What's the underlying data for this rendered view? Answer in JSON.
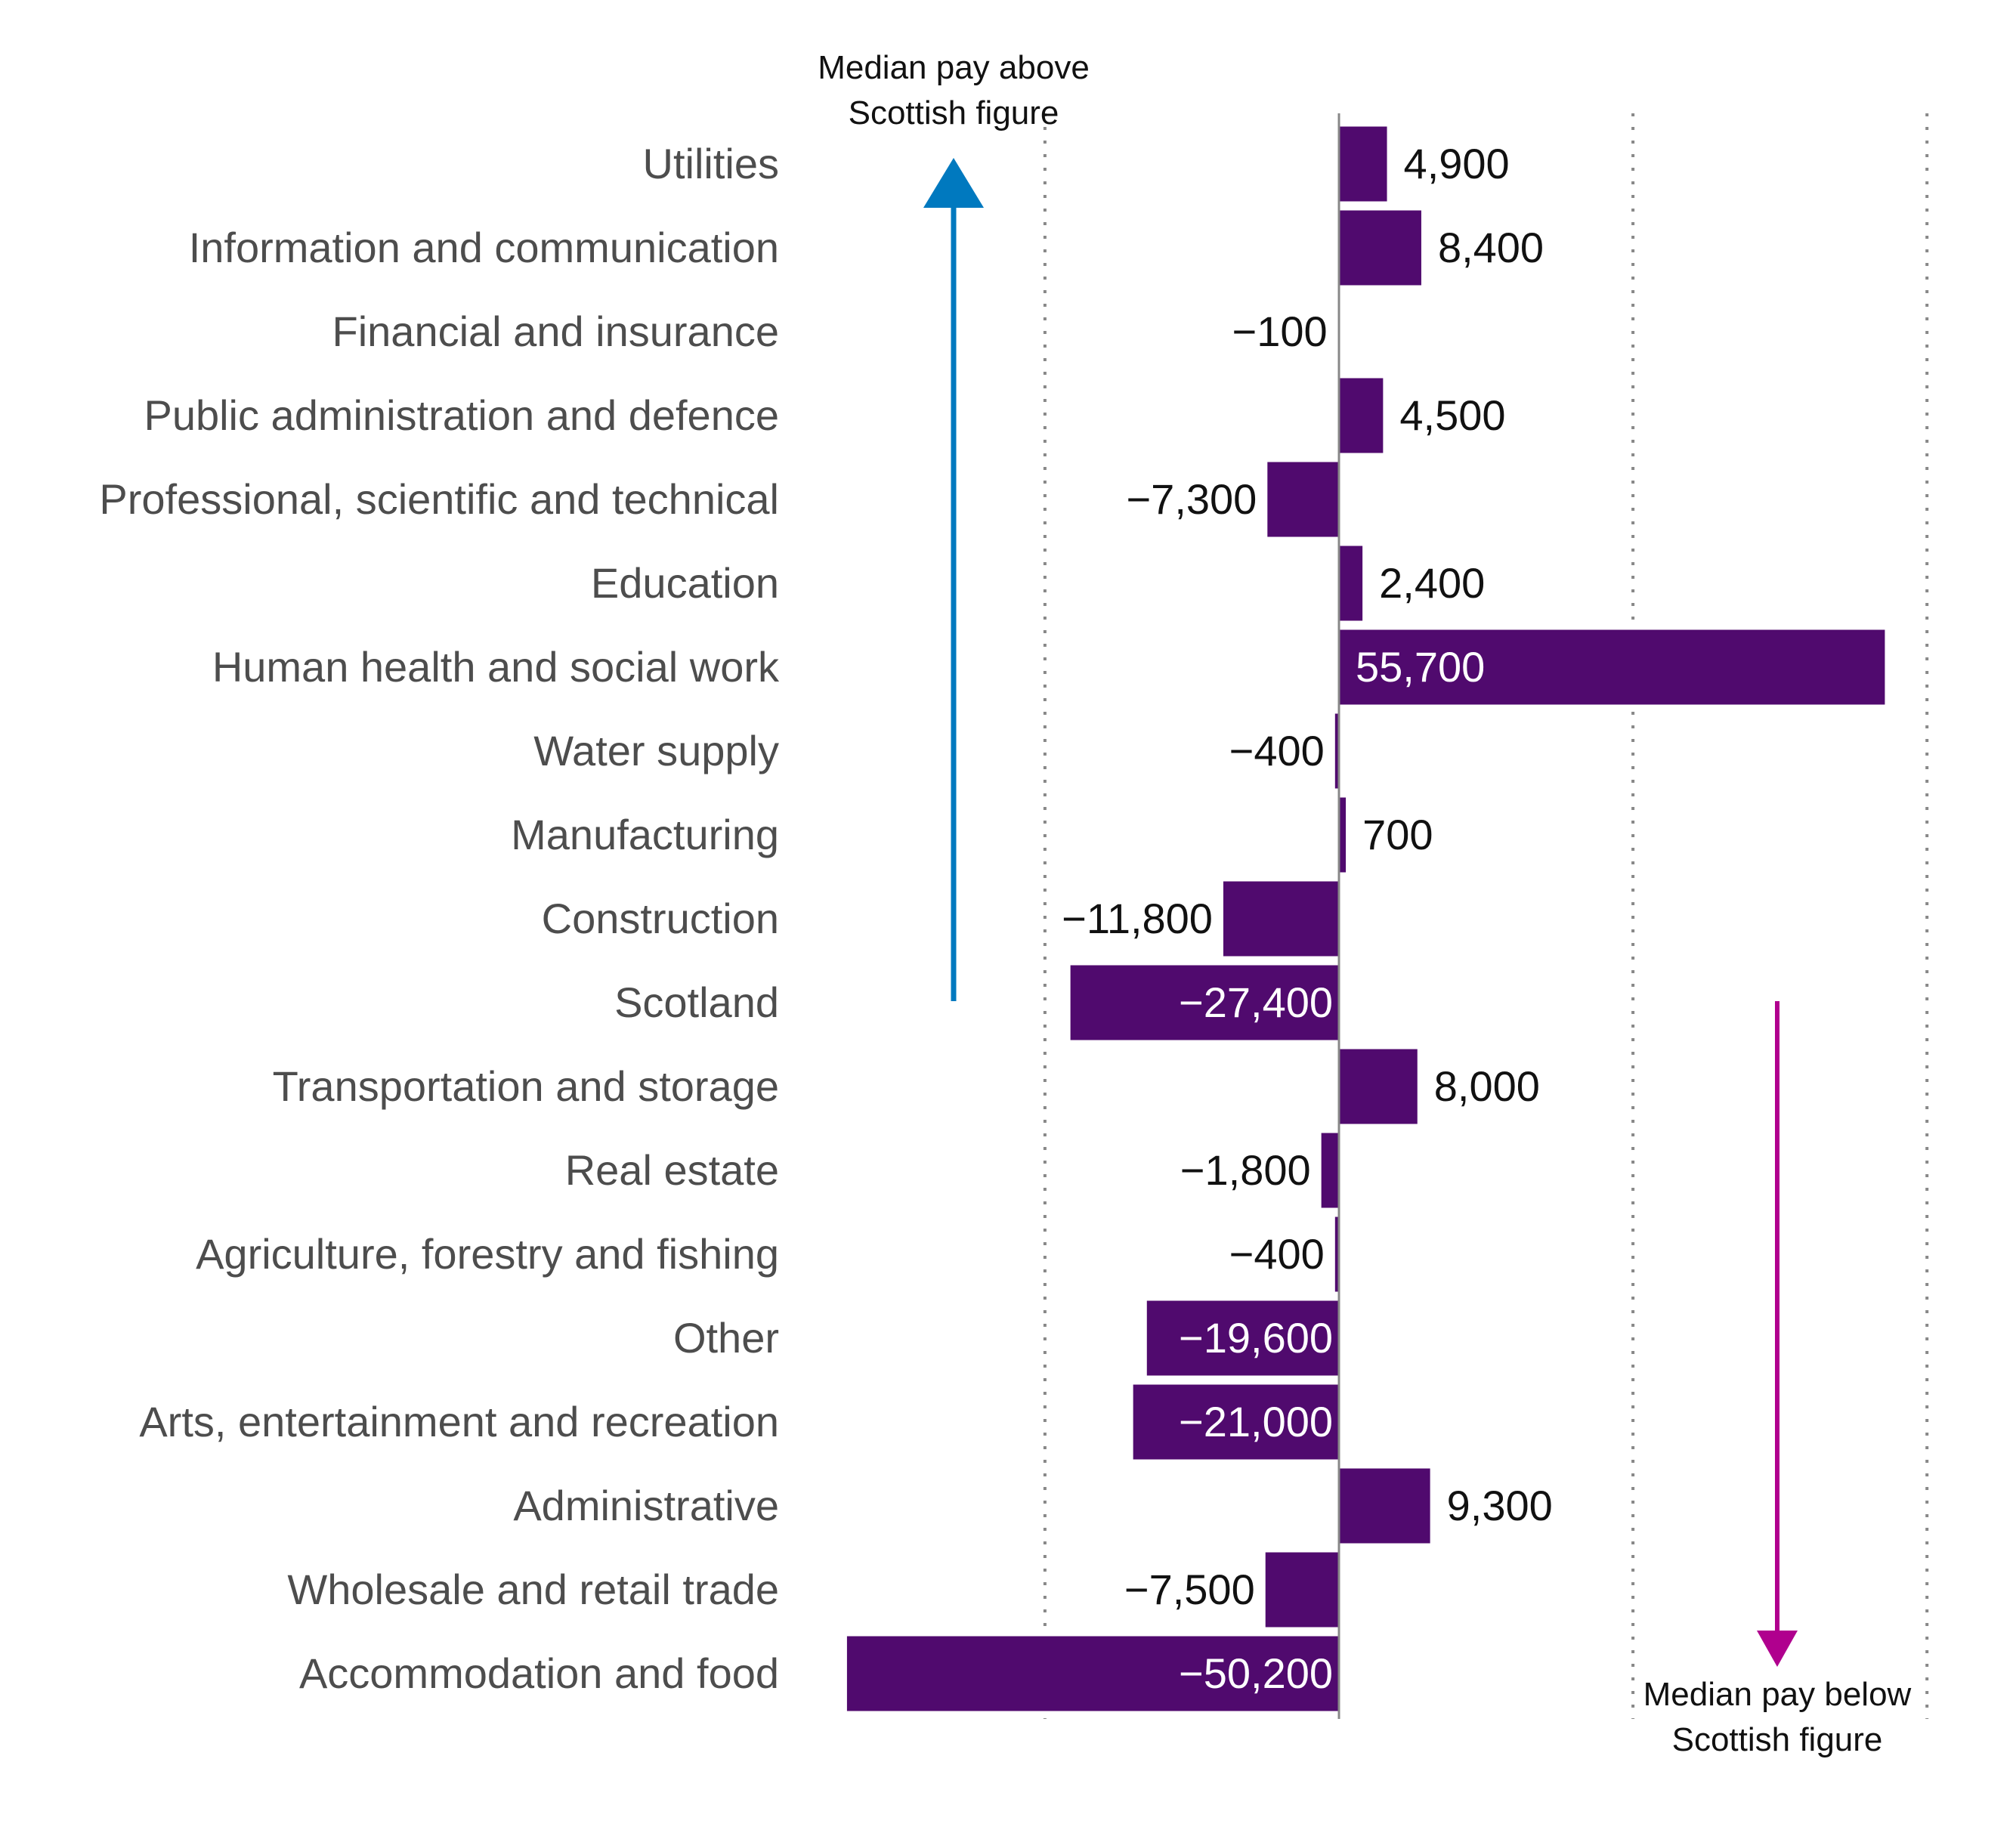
{
  "chart_data": {
    "type": "bar",
    "orientation": "horizontal",
    "categories": [
      "Utilities",
      "Information and communication",
      "Financial and insurance",
      "Public administration and defence",
      "Professional, scientific and technical",
      "Education",
      "Human health and social work",
      "Water supply",
      "Manufacturing",
      "Construction",
      "Scotland",
      "Transportation and storage",
      "Real estate",
      "Agriculture, forestry and fishing",
      "Other",
      "Arts, entertainment and recreation",
      "Administrative",
      "Wholesale and retail trade",
      "Accommodation and food"
    ],
    "values": [
      4900,
      8400,
      -100,
      4500,
      -7300,
      2400,
      55700,
      -400,
      700,
      -11800,
      -27400,
      8000,
      -1800,
      -400,
      -19600,
      -21000,
      9300,
      -7500,
      -50200
    ],
    "value_labels": [
      "4,900",
      "8,400",
      "−100",
      "4,500",
      "−7,300",
      "2,400",
      "55,700",
      "−400",
      "700",
      "−11,800",
      "−27,400",
      "8,000",
      "−1,800",
      "−400",
      "−19,600",
      "−21,000",
      "9,300",
      "−7,500",
      "−50,200"
    ],
    "xlim": [
      -50200,
      60000
    ],
    "gridlines": [
      -30000,
      30000,
      60000
    ],
    "grid": "vertical dotted",
    "annotations": {
      "above": [
        "Median pay above",
        "Scottish figure"
      ],
      "below": [
        "Median pay below",
        "Scottish figure"
      ]
    },
    "colors": {
      "bar": "#500a6e",
      "arrow_up": "#0079bf",
      "arrow_down": "#b0008e",
      "axis": "#888888",
      "label": "#4d4d4d"
    }
  }
}
